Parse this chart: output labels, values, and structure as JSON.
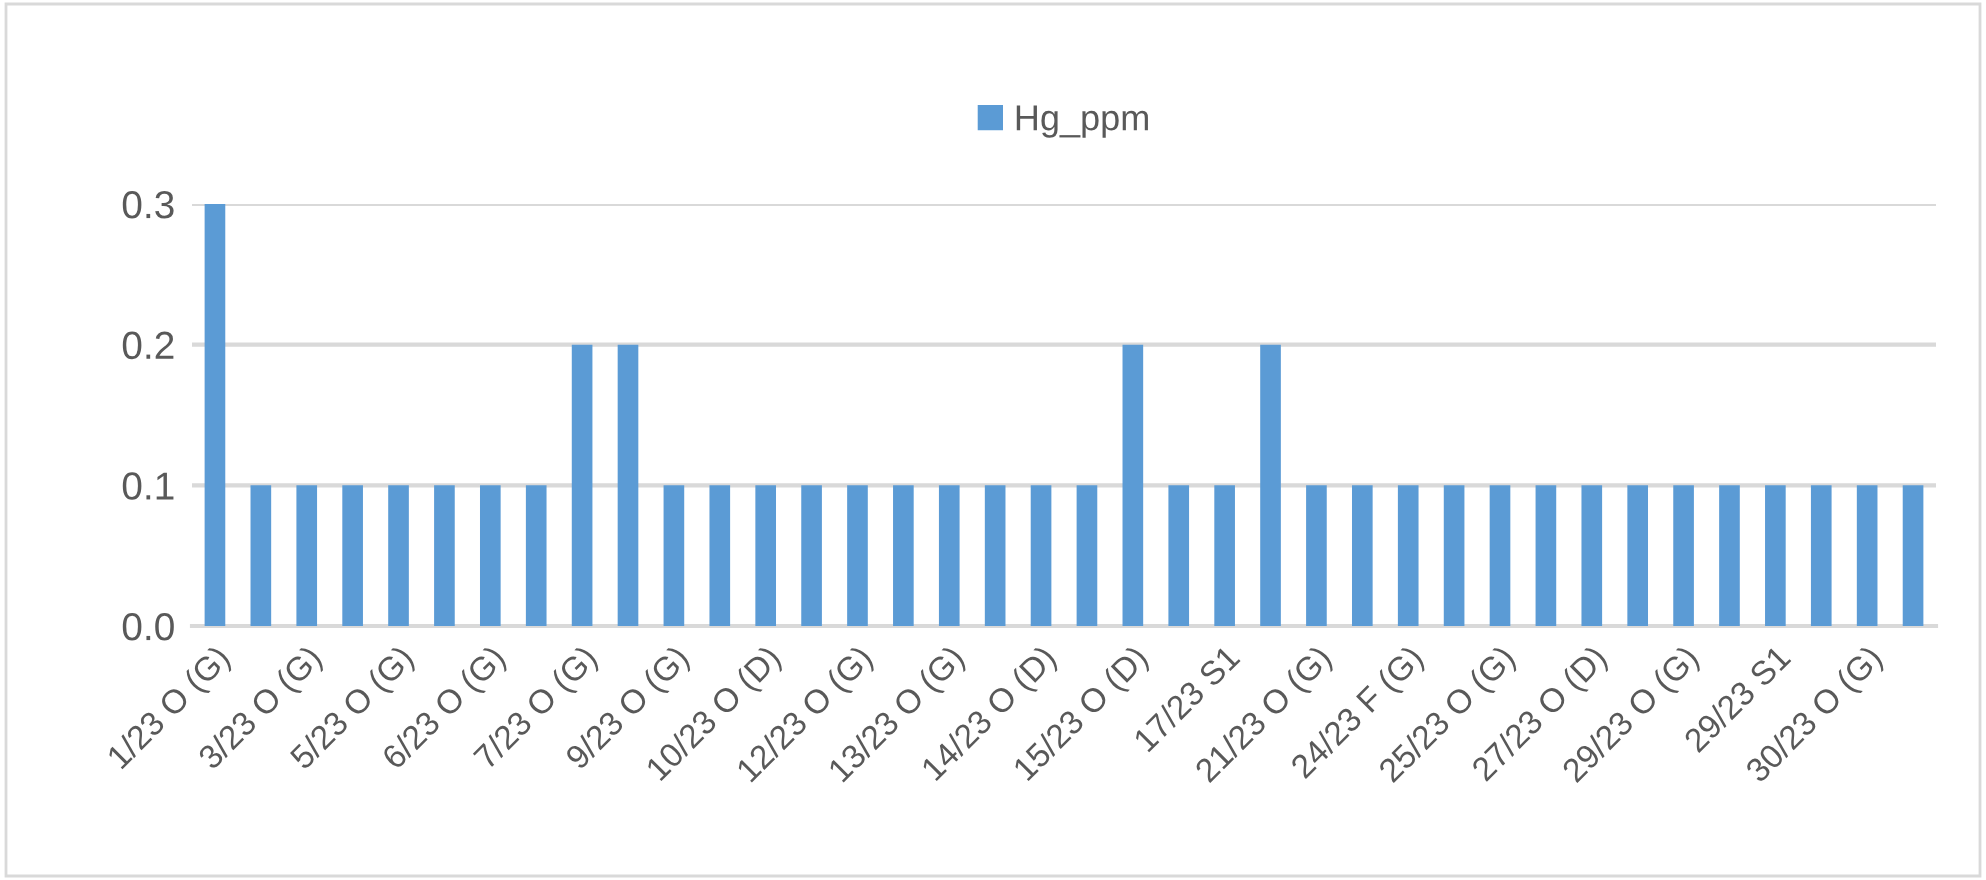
{
  "chart_data": {
    "type": "bar",
    "categories": [
      "1/23 O (G)",
      null,
      "3/23 O (G)",
      null,
      "5/23 O (G)",
      null,
      "6/23 O (G)",
      null,
      "7/23 O (G)",
      null,
      "9/23 O (G)",
      null,
      "10/23 O (D)",
      null,
      "12/23 O (G)",
      null,
      "13/23 O (G)",
      null,
      "14/23 O (D)",
      null,
      "15/23 O (D)",
      null,
      "17/23 S1",
      null,
      "21/23 O (G)",
      null,
      "24/23 F (G)",
      null,
      "25/23 O (G)",
      null,
      "27/23 O (D)",
      null,
      "29/23 O (G)",
      null,
      "29/23 S1",
      null,
      "30/23 O (G)",
      null
    ],
    "series": [
      {
        "name": "Hg_ppm",
        "color": "#5b9bd5",
        "values": [
          0.3,
          0.1,
          0.1,
          0.1,
          0.1,
          0.1,
          0.1,
          0.1,
          0.2,
          0.2,
          0.1,
          0.1,
          0.1,
          0.1,
          0.1,
          0.1,
          0.1,
          0.1,
          0.1,
          0.1,
          0.2,
          0.1,
          0.1,
          0.2,
          0.1,
          0.1,
          0.1,
          0.1,
          0.1,
          0.1,
          0.1,
          0.1,
          0.1,
          0.1,
          0.1,
          0.1,
          0.1,
          0.1
        ]
      }
    ],
    "ylim": [
      0,
      0.3
    ],
    "yticks": [
      {
        "value": 0,
        "label": "0.0"
      },
      0.1,
      0.2,
      0.3
    ],
    "grid": "y",
    "legend": "top"
  }
}
